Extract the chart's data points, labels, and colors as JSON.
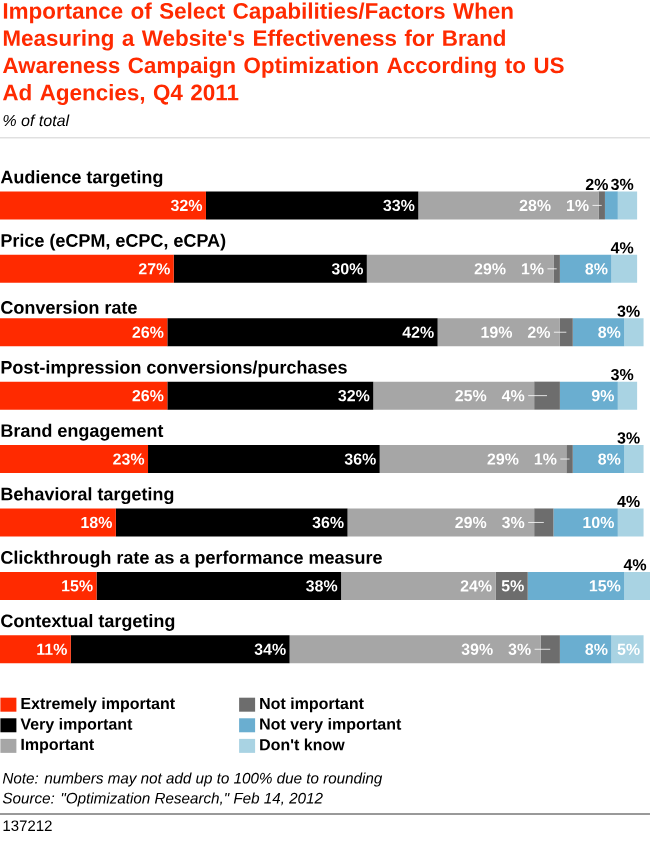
{
  "chart_data": {
    "type": "bar",
    "orientation": "horizontal",
    "stacked": true,
    "title": "Importance of Select Capabilities/Factors When Measuring a Website's Effectiveness for Brand Awareness Campaign Optimization According to US Ad Agencies, Q4 2011",
    "subtitle": "% of total",
    "categories": [
      "Audience targeting",
      "Price (eCPM, eCPC, eCPA)",
      "Conversion rate",
      "Post-impression conversions/purchases",
      "Brand engagement",
      "Behavioral targeting",
      "Clickthrough rate as a performance measure",
      "Contextual targeting"
    ],
    "series": [
      {
        "name": "Extremely important",
        "color": "#ff2a00",
        "values": [
          32,
          27,
          26,
          26,
          23,
          18,
          15,
          11
        ],
        "value_labels": [
          "32%",
          "27%",
          "26%",
          "26%",
          "23%",
          "18%",
          "15%",
          "11%"
        ]
      },
      {
        "name": "Very important",
        "color": "#000000",
        "values": [
          33,
          30,
          42,
          32,
          36,
          36,
          38,
          34
        ],
        "value_labels": [
          "33%",
          "30%",
          "42%",
          "32%",
          "36%",
          "36%",
          "38%",
          "34%"
        ]
      },
      {
        "name": "Important",
        "color": "#a6a6a6",
        "values": [
          28,
          29,
          19,
          25,
          29,
          29,
          24,
          39
        ],
        "value_labels": [
          "28%",
          "29%",
          "19%",
          "25%",
          "29%",
          "29%",
          "24%",
          "39%"
        ]
      },
      {
        "name": "Not important",
        "color": "#6d6d6d",
        "values": [
          1,
          1,
          2,
          4,
          1,
          3,
          5,
          3
        ],
        "value_labels": [
          "1%",
          "1%",
          "2%",
          "4%",
          "1%",
          "3%",
          "5%",
          "3%"
        ]
      },
      {
        "name": "Not very important",
        "color": "#6aaed0",
        "values": [
          2,
          8,
          8,
          9,
          8,
          10,
          15,
          8
        ],
        "value_labels": [
          "2%",
          "8%",
          "8%",
          "9%",
          "8%",
          "10%",
          "15%",
          "8%"
        ]
      },
      {
        "name": "Don't know",
        "color": "#a9d3e3",
        "values": [
          3,
          4,
          3,
          3,
          3,
          4,
          4,
          5
        ],
        "value_labels": [
          "3%",
          "4%",
          "3%",
          "3%",
          "3%",
          "4%",
          "4%",
          "5%"
        ]
      }
    ],
    "xlim": [
      0,
      101
    ],
    "legend": "bottom",
    "annotations": [
      "Note: numbers may not add up to 100% due to rounding",
      "Source: \"Optimization Research,\" Feb 14, 2012",
      "137212"
    ]
  }
}
